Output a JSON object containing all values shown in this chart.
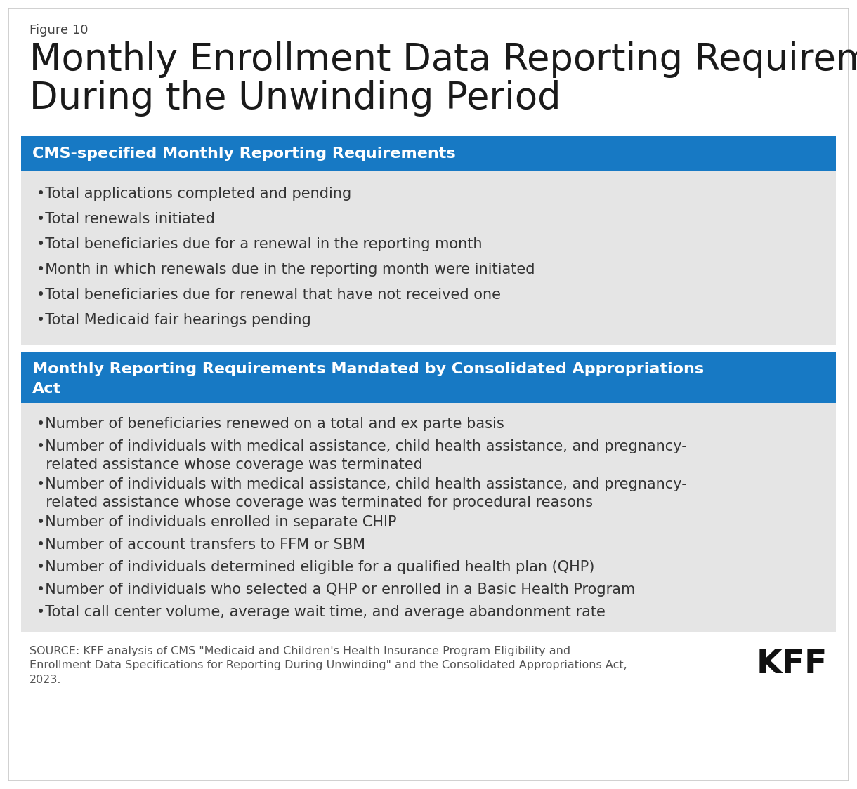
{
  "figure_label": "Figure 10",
  "title_line1": "Monthly Enrollment Data Reporting Requirements",
  "title_line2": "During the Unwinding Period",
  "background_color": "#ffffff",
  "outer_border_color": "#c8c8c8",
  "section1_header": "CMS-specified Monthly Reporting Requirements",
  "section1_header_bg": "#1779c4",
  "section1_header_color": "#ffffff",
  "section1_body_bg": "#e5e5e5",
  "section1_items": [
    "•Total applications completed and pending",
    "•Total renewals initiated",
    "•Total beneficiaries due for a renewal in the reporting month",
    "•Month in which renewals due in the reporting month were initiated",
    "•Total beneficiaries due for renewal that have not received one",
    "•Total Medicaid fair hearings pending"
  ],
  "section2_header_line1": "Monthly Reporting Requirements Mandated by Consolidated Appropriations",
  "section2_header_line2": "Act",
  "section2_header_bg": "#1779c4",
  "section2_header_color": "#ffffff",
  "section2_body_bg": "#e5e5e5",
  "section2_items": [
    "•Number of beneficiaries renewed on a total and ex parte basis",
    "•Number of individuals with medical assistance, child health assistance, and pregnancy-\n  related assistance whose coverage was terminated",
    "•Number of individuals with medical assistance, child health assistance, and pregnancy-\n  related assistance whose coverage was terminated for procedural reasons",
    "•Number of individuals enrolled in separate CHIP",
    "•Number of account transfers to FFM or SBM",
    "•Number of individuals determined eligible for a qualified health plan (QHP)",
    "•Number of individuals who selected a QHP or enrolled in a Basic Health Program",
    "•Total call center volume, average wait time, and average abandonment rate"
  ],
  "source_text": "SOURCE: KFF analysis of CMS \"Medicaid and Children's Health Insurance Program Eligibility and\nEnrollment Data Specifications for Reporting During Unwinding\" and the Consolidated Appropriations Act,\n2023.",
  "kff_logo_text": "KFF",
  "text_color": "#333333",
  "source_color": "#555555"
}
